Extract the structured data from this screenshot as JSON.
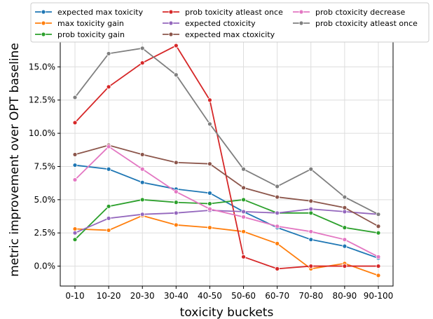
{
  "chart_data": {
    "type": "line",
    "xlabel": "toxicity buckets",
    "ylabel": "metric improvement over OPT baseline",
    "categories": [
      "0-10",
      "10-20",
      "20-30",
      "30-40",
      "40-50",
      "50-60",
      "60-70",
      "70-80",
      "80-90",
      "90-100"
    ],
    "ylim": [
      -0.015,
      0.175
    ],
    "yticks": [
      0.0,
      0.025,
      0.05,
      0.075,
      0.1,
      0.125,
      0.15
    ],
    "ytick_labels": [
      "0.0%",
      "2.5%",
      "5.0%",
      "7.5%",
      "10.0%",
      "12.5%",
      "15.0%"
    ],
    "grid": true,
    "legend_position": "top",
    "series": [
      {
        "name": "expected max toxicity",
        "color": "#1f77b4",
        "values": [
          0.076,
          0.073,
          0.063,
          0.058,
          0.055,
          0.041,
          0.029,
          0.02,
          0.015,
          0.006
        ]
      },
      {
        "name": "max toxicity gain",
        "color": "#ff7f0e",
        "values": [
          0.028,
          0.027,
          0.038,
          0.031,
          0.029,
          0.026,
          0.017,
          -0.002,
          0.002,
          -0.007
        ]
      },
      {
        "name": "prob toxicity gain",
        "color": "#2ca02c",
        "values": [
          0.02,
          0.045,
          0.05,
          0.048,
          0.047,
          0.05,
          0.04,
          0.04,
          0.029,
          0.025
        ]
      },
      {
        "name": "prob toxicity atleast once",
        "color": "#d62728",
        "values": [
          0.108,
          0.135,
          0.153,
          0.166,
          0.125,
          0.007,
          -0.002,
          0.0,
          0.0,
          0.0
        ]
      },
      {
        "name": "expected ctoxicity",
        "color": "#9467bd",
        "values": [
          0.025,
          0.036,
          0.039,
          0.04,
          0.042,
          0.041,
          0.04,
          0.043,
          0.041,
          0.039
        ]
      },
      {
        "name": "expected max ctoxicity",
        "color": "#8c564b",
        "values": [
          0.084,
          0.091,
          0.084,
          0.078,
          0.077,
          0.059,
          0.052,
          0.049,
          0.044,
          0.03
        ]
      },
      {
        "name": "prob ctoxicity decrease",
        "color": "#e377c2",
        "values": [
          0.065,
          0.09,
          0.073,
          0.056,
          0.043,
          0.037,
          0.03,
          0.026,
          0.02,
          0.007
        ]
      },
      {
        "name": "prob ctoxicity atleast once",
        "color": "#7f7f7f",
        "values": [
          0.127,
          0.16,
          0.164,
          0.144,
          0.107,
          0.073,
          0.06,
          0.073,
          0.052,
          0.039
        ]
      }
    ]
  }
}
